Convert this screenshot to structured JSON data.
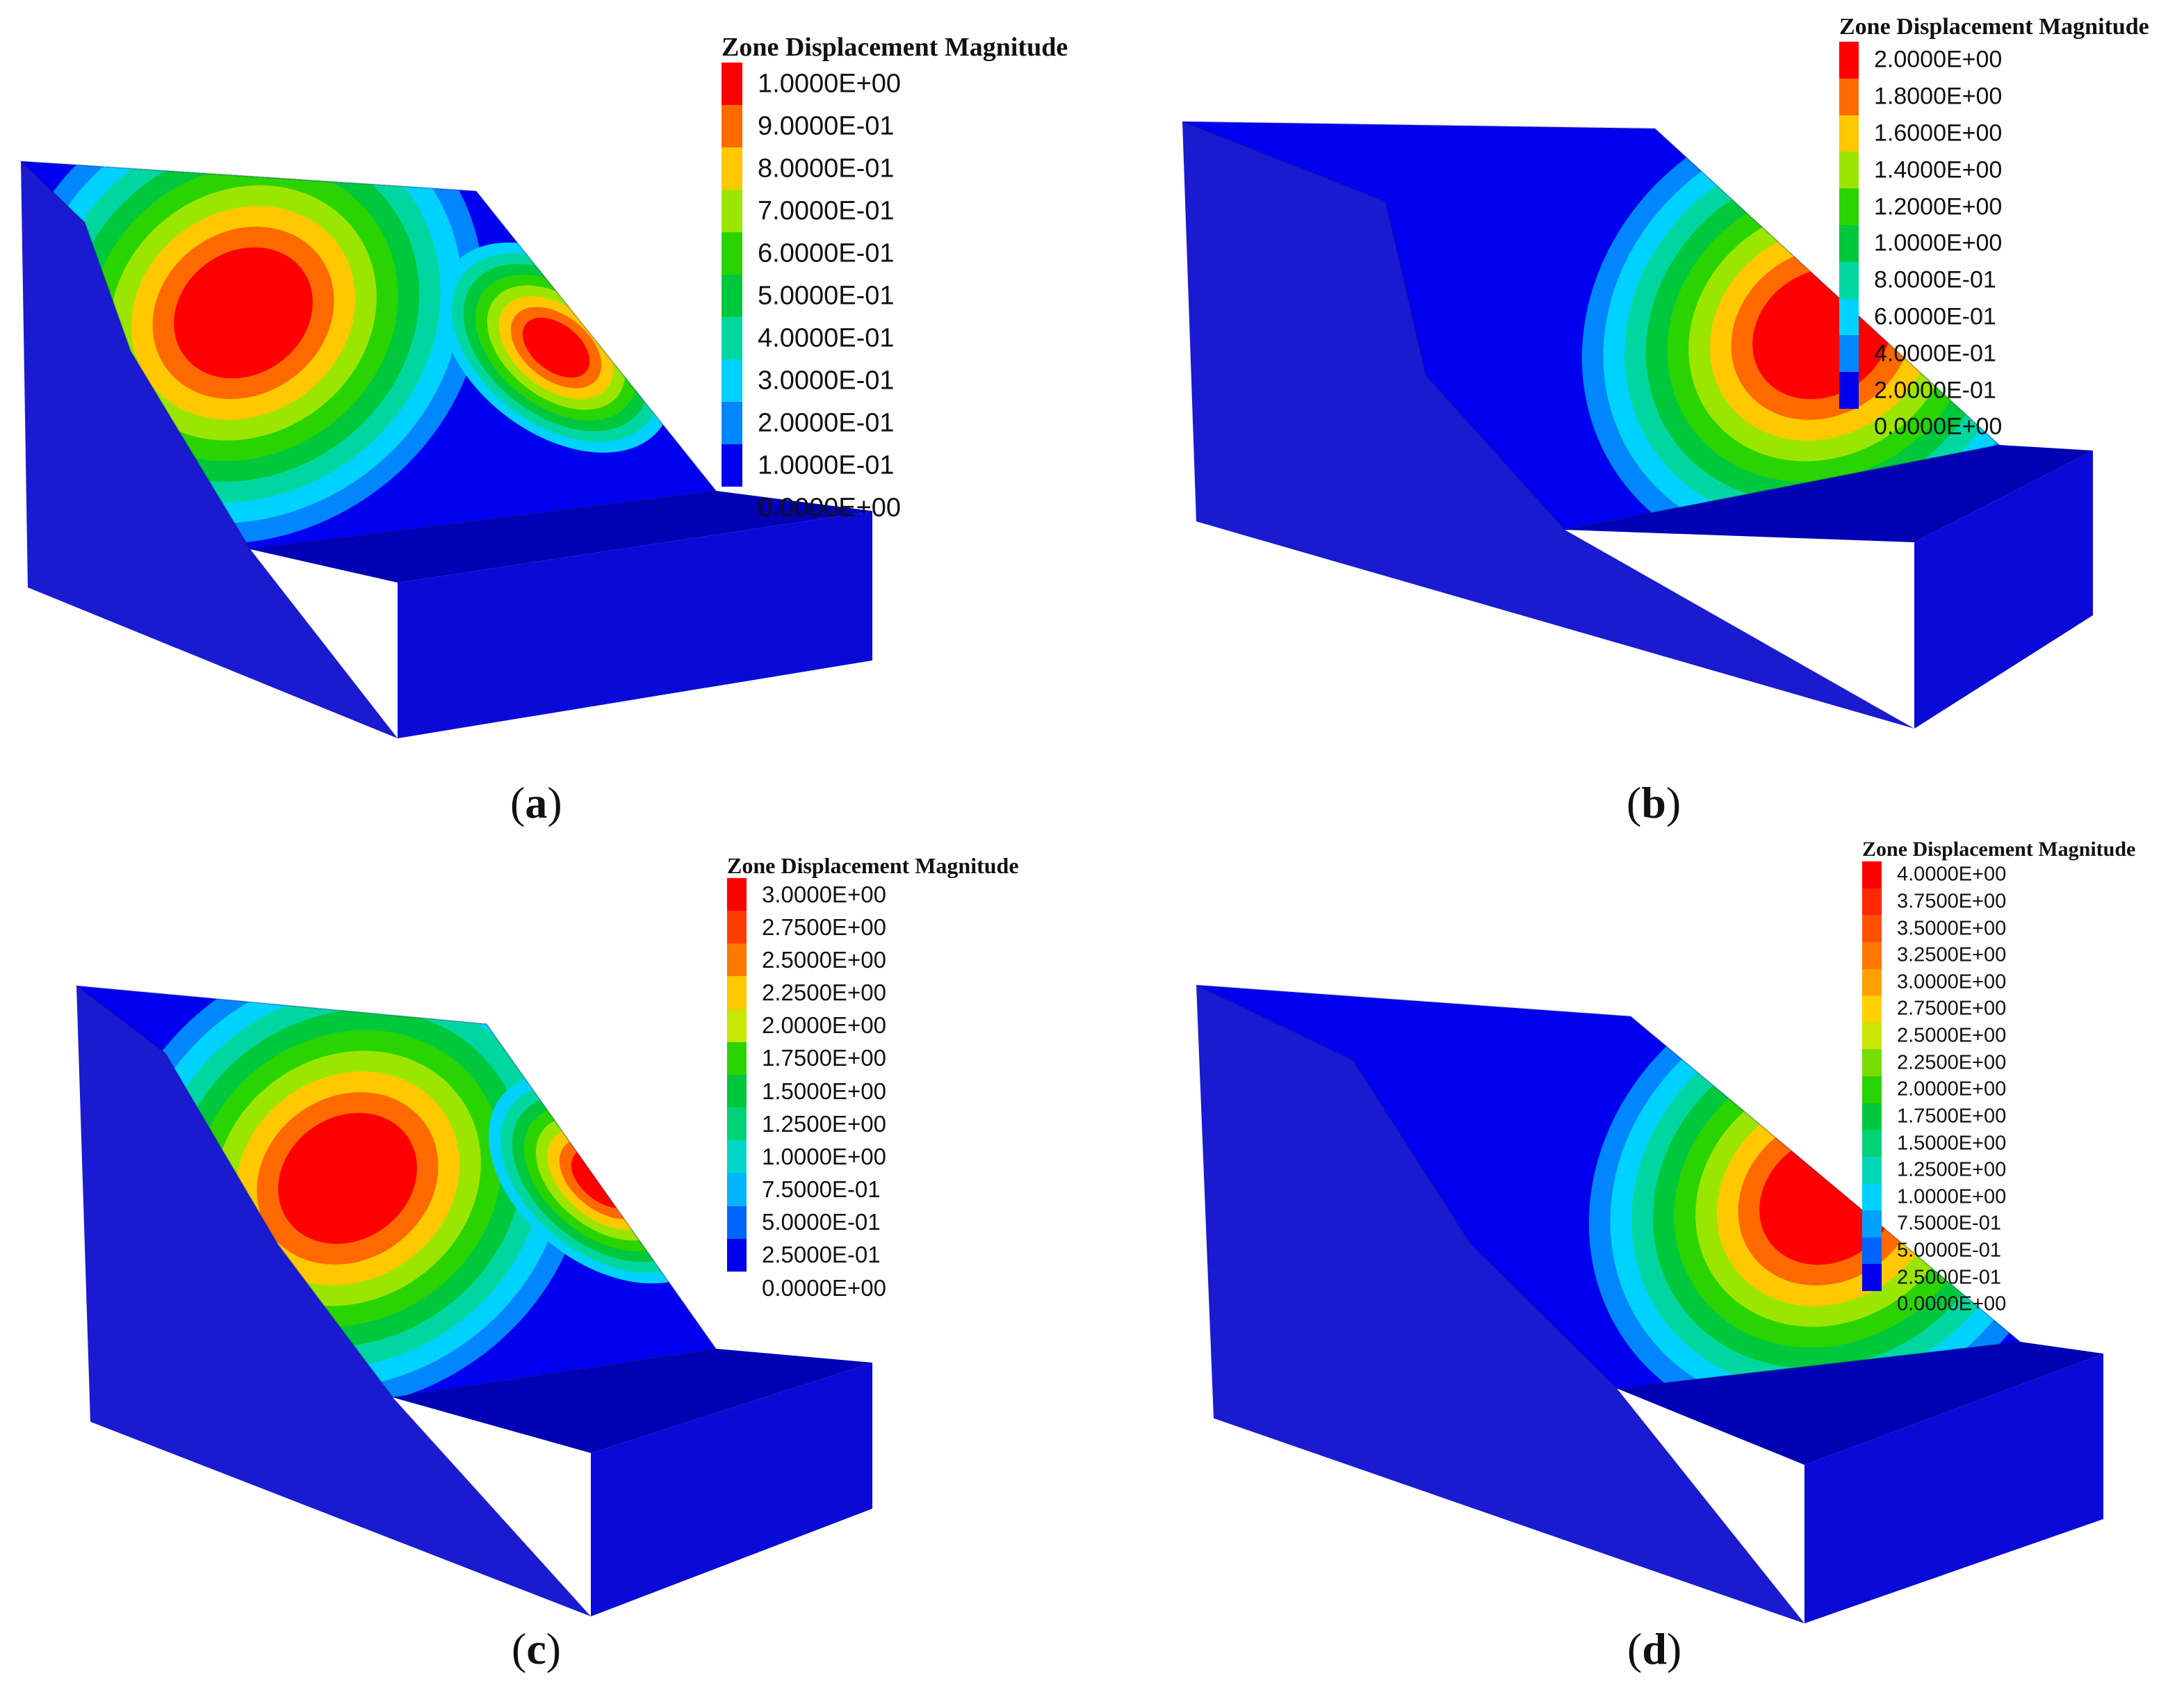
{
  "figure": {
    "panels": [
      {
        "id": "a",
        "caption_letter": "a",
        "legend": {
          "title": "Zone Displacement Magnitude",
          "levels": [
            "1.0000E+00",
            "9.0000E-01",
            "8.0000E-01",
            "7.0000E-01",
            "6.0000E-01",
            "5.0000E-01",
            "4.0000E-01",
            "3.0000E-01",
            "2.0000E-01",
            "1.0000E-01",
            "0.0000E+00"
          ],
          "colors": [
            "#ff0000",
            "#ff6a00",
            "#ffc800",
            "#9be600",
            "#2ad400",
            "#00c83c",
            "#00d7a0",
            "#00d2ff",
            "#0087ff",
            "#0000ee"
          ]
        }
      },
      {
        "id": "b",
        "caption_letter": "b",
        "legend": {
          "title": "Zone Displacement Magnitude",
          "levels": [
            "2.0000E+00",
            "1.8000E+00",
            "1.6000E+00",
            "1.4000E+00",
            "1.2000E+00",
            "1.0000E+00",
            "8.0000E-01",
            "6.0000E-01",
            "4.0000E-01",
            "2.0000E-01",
            "0.0000E+00"
          ],
          "colors": [
            "#ff0000",
            "#ff6a00",
            "#ffc800",
            "#9be600",
            "#2ad400",
            "#00c83c",
            "#00d7a0",
            "#00d2ff",
            "#0087ff",
            "#0000ee"
          ]
        }
      },
      {
        "id": "c",
        "caption_letter": "c",
        "legend": {
          "title": "Zone Displacement Magnitude",
          "levels": [
            "3.0000E+00",
            "2.7500E+00",
            "2.5000E+00",
            "2.2500E+00",
            "2.0000E+00",
            "1.7500E+00",
            "1.5000E+00",
            "1.2500E+00",
            "1.0000E+00",
            "7.5000E-01",
            "5.0000E-01",
            "2.5000E-01",
            "0.0000E+00"
          ],
          "colors": [
            "#ff0000",
            "#ff3c00",
            "#ff7800",
            "#ffc800",
            "#c8e600",
            "#2ad400",
            "#00c83c",
            "#00d278",
            "#00d7c8",
            "#00b4ff",
            "#0064ff",
            "#0000ee"
          ]
        }
      },
      {
        "id": "d",
        "caption_letter": "d",
        "legend": {
          "title": "Zone Displacement Magnitude",
          "levels": [
            "4.0000E+00",
            "3.7500E+00",
            "3.5000E+00",
            "3.2500E+00",
            "3.0000E+00",
            "2.7500E+00",
            "2.5000E+00",
            "2.2500E+00",
            "2.0000E+00",
            "1.7500E+00",
            "1.5000E+00",
            "1.2500E+00",
            "1.0000E+00",
            "7.5000E-01",
            "5.0000E-01",
            "2.5000E-01",
            "0.0000E+00"
          ],
          "colors": [
            "#ff0000",
            "#ff2800",
            "#ff5000",
            "#ff7800",
            "#ffa000",
            "#ffd200",
            "#c8e600",
            "#78dc00",
            "#2ad400",
            "#00c83c",
            "#00d278",
            "#00d7b4",
            "#00d2ff",
            "#00a0ff",
            "#0064ff",
            "#0000ee"
          ]
        }
      }
    ]
  }
}
